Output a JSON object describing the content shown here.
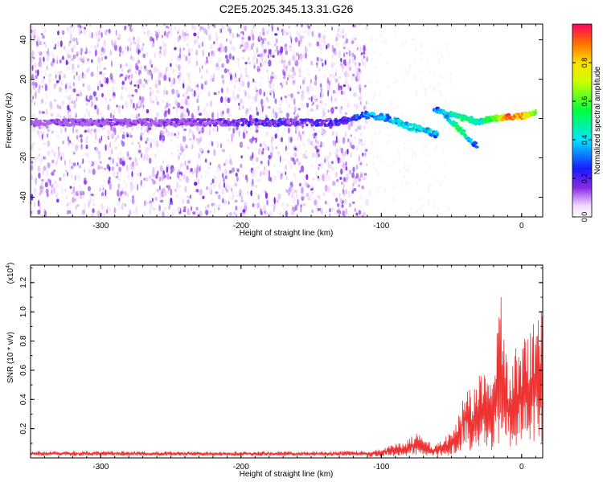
{
  "chart_data": [
    {
      "type": "heatmap",
      "title": "C2E5.2025.345.13.31.G26",
      "xlabel": "Height of straight line (km)",
      "ylabel": "Frequency (Hz)",
      "xlim": [
        -350,
        15
      ],
      "ylim": [
        -50,
        48
      ],
      "xticks": [
        -300,
        -200,
        -100,
        0
      ],
      "yticks": [
        -40,
        -20,
        0,
        20,
        40
      ],
      "colorbar": {
        "label": "Normalized spectral amplitude",
        "range": [
          0.0,
          1.0
        ],
        "ticks": [
          0.0,
          0.2,
          0.4,
          0.6,
          0.8
        ],
        "colormap": "rainbow (violet-blue-cyan-green-yellow-orange-red)"
      },
      "noise_field": {
        "x_range": [
          -350,
          -110
        ],
        "y_range": [
          -50,
          48
        ],
        "amplitude": 0.1
      },
      "main_trace": [
        {
          "x": -350,
          "y": -2,
          "amp": 0.08
        },
        {
          "x": -300,
          "y": -2,
          "amp": 0.1
        },
        {
          "x": -250,
          "y": -2,
          "amp": 0.1
        },
        {
          "x": -210,
          "y": -2,
          "amp": 0.12
        },
        {
          "x": -180,
          "y": -2,
          "amp": 0.2
        },
        {
          "x": -150,
          "y": -2,
          "amp": 0.18
        },
        {
          "x": -130,
          "y": -2,
          "amp": 0.18
        },
        {
          "x": -110,
          "y": 2,
          "amp": 0.3
        },
        {
          "x": -95,
          "y": 0,
          "amp": 0.35
        },
        {
          "x": -80,
          "y": -4,
          "amp": 0.42
        },
        {
          "x": -70,
          "y": -6,
          "amp": 0.4
        },
        {
          "x": -60,
          "y": -8,
          "amp": 0.35
        }
      ],
      "upper_trace": [
        {
          "x": -62,
          "y": 5,
          "amp": 0.3
        },
        {
          "x": -50,
          "y": 2,
          "amp": 0.45
        },
        {
          "x": -40,
          "y": 0,
          "amp": 0.5
        },
        {
          "x": -30,
          "y": -2,
          "amp": 0.45
        },
        {
          "x": -20,
          "y": 0,
          "amp": 0.6
        },
        {
          "x": -10,
          "y": 1,
          "amp": 0.9
        },
        {
          "x": 0,
          "y": 1,
          "amp": 0.85
        },
        {
          "x": 10,
          "y": 3,
          "amp": 0.6
        }
      ],
      "lower_branch": [
        {
          "x": -55,
          "y": 2,
          "amp": 0.35
        },
        {
          "x": -45,
          "y": -5,
          "amp": 0.55
        },
        {
          "x": -38,
          "y": -10,
          "amp": 0.4
        },
        {
          "x": -32,
          "y": -14,
          "amp": 0.25
        }
      ]
    },
    {
      "type": "line",
      "xlabel": "Height of straight line (km)",
      "ylabel": "SNR (10 * v/v)",
      "multiplier_label": "(x10",
      "multiplier_exponent": "4",
      "xlim": [
        -350,
        15
      ],
      "ylim": [
        0,
        1.32
      ],
      "xticks": [
        -300,
        -200,
        -100,
        0
      ],
      "yticks": [
        0.2,
        0.4,
        0.6,
        0.8,
        1.0,
        1.2
      ],
      "color": "#ee3333",
      "envelope": [
        {
          "x": -350,
          "y": 0.04
        },
        {
          "x": -250,
          "y": 0.035
        },
        {
          "x": -150,
          "y": 0.035
        },
        {
          "x": -110,
          "y": 0.04
        },
        {
          "x": -100,
          "y": 0.07
        },
        {
          "x": -90,
          "y": 0.1
        },
        {
          "x": -80,
          "y": 0.13
        },
        {
          "x": -75,
          "y": 0.2
        },
        {
          "x": -70,
          "y": 0.12
        },
        {
          "x": -60,
          "y": 0.1
        },
        {
          "x": -50,
          "y": 0.18
        },
        {
          "x": -45,
          "y": 0.3
        },
        {
          "x": -40,
          "y": 0.55
        },
        {
          "x": -35,
          "y": 0.45
        },
        {
          "x": -30,
          "y": 0.6
        },
        {
          "x": -20,
          "y": 0.62
        },
        {
          "x": -15,
          "y": 1.15
        },
        {
          "x": -10,
          "y": 0.7
        },
        {
          "x": 0,
          "y": 0.8
        },
        {
          "x": 10,
          "y": 0.95
        },
        {
          "x": 15,
          "y": 1.05
        }
      ]
    }
  ]
}
